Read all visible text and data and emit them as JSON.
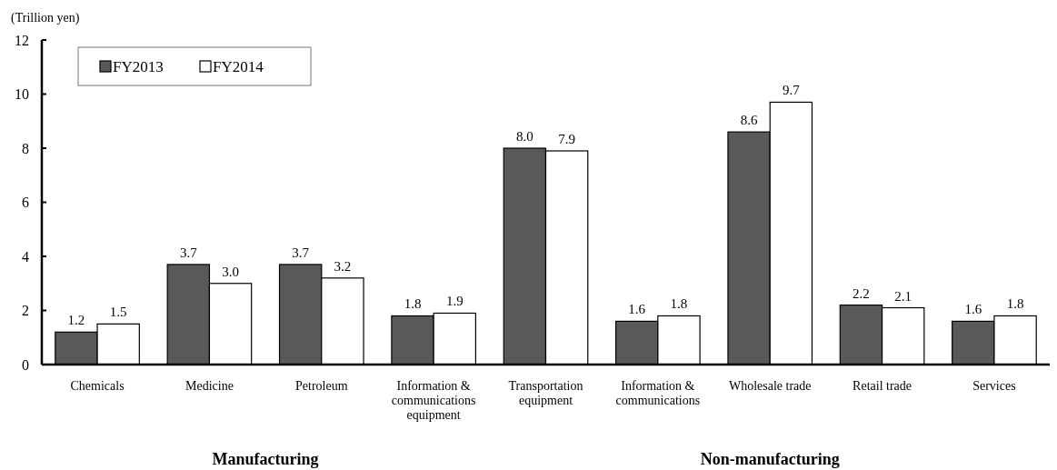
{
  "chart_data": {
    "type": "bar",
    "ylabel": "(Trillion yen)",
    "categories": [
      "Chemicals",
      "Medicine",
      "Petroleum",
      "Information & communications equipment",
      "Transportation equipment",
      "Information & communications",
      "Wholesale trade",
      "Retail trade",
      "Services"
    ],
    "series": [
      {
        "name": "FY2013",
        "color": "#595959",
        "values": [
          1.2,
          3.7,
          3.7,
          1.8,
          8.0,
          1.6,
          8.6,
          2.2,
          1.6
        ],
        "value_labels": [
          "1.2",
          "3.7",
          "3.7",
          "1.8",
          "8.0",
          "1.6",
          "8.6",
          "2.2",
          "1.6"
        ]
      },
      {
        "name": "FY2014",
        "color": "#ffffff",
        "values": [
          1.5,
          3.0,
          3.2,
          1.9,
          7.9,
          1.8,
          9.7,
          2.1,
          1.8
        ],
        "value_labels": [
          "1.5",
          "3.0",
          "3.2",
          "1.9",
          "7.9",
          "1.8",
          "9.7",
          "2.1",
          "1.8"
        ]
      }
    ],
    "ylim": [
      0,
      12
    ],
    "yticks": [
      0,
      2,
      4,
      6,
      8,
      10,
      12
    ],
    "legend": "top left",
    "grid": false,
    "annotations": [
      "Manufacturing",
      "Non-manufacturing"
    ]
  }
}
